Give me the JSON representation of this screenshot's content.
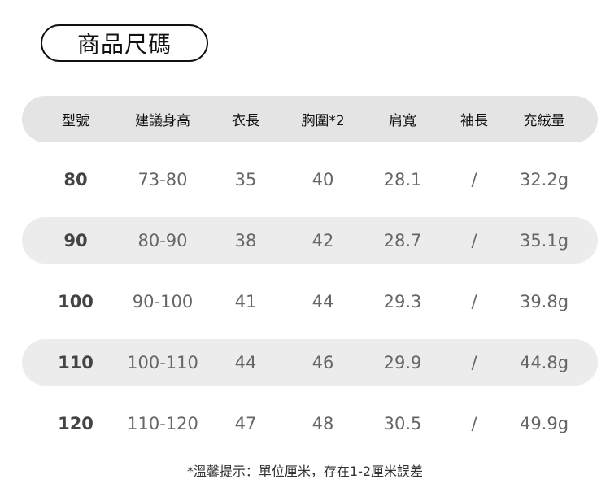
{
  "title": "商品尺碼",
  "columns": [
    "型號",
    "建議身高",
    "衣長",
    "胸圍*2",
    "肩寬",
    "袖長",
    "充絨量"
  ],
  "rows": [
    [
      "80",
      "73-80",
      "35",
      "40",
      "28.1",
      "/",
      "32.2g"
    ],
    [
      "90",
      "80-90",
      "38",
      "42",
      "28.7",
      "/",
      "35.1g"
    ],
    [
      "100",
      "90-100",
      "41",
      "44",
      "29.3",
      "/",
      "39.8g"
    ],
    [
      "110",
      "100-110",
      "44",
      "46",
      "29.9",
      "/",
      "44.8g"
    ],
    [
      "120",
      "110-120",
      "47",
      "48",
      "30.5",
      "/",
      "49.9g"
    ]
  ],
  "note": "*溫馨提示：單位厘米，存在1-2厘米誤差"
}
